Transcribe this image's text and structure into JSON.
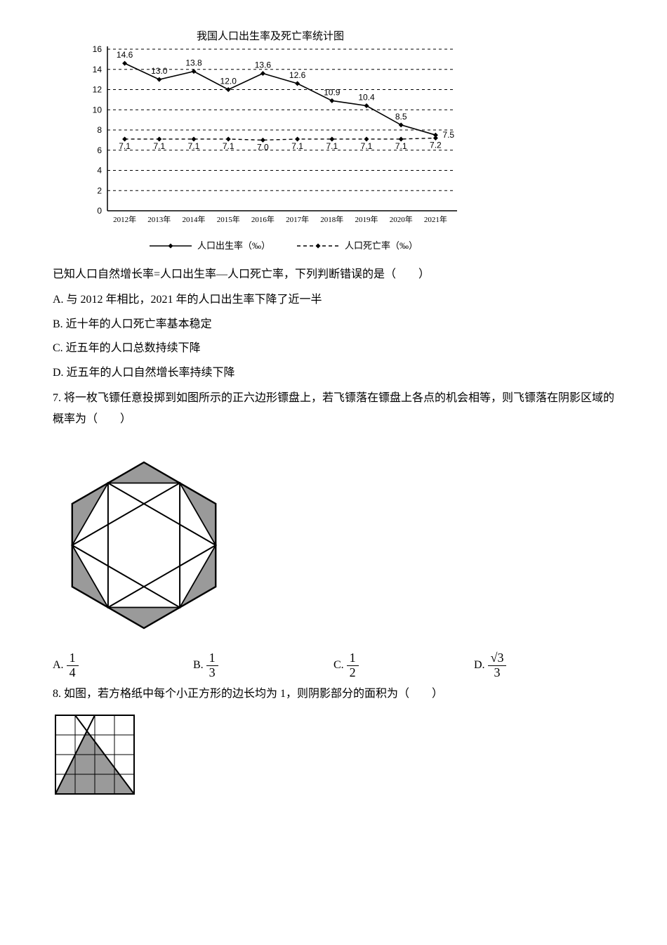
{
  "chart": {
    "type": "line",
    "title": "我国人口出生率及死亡率统计图",
    "title_fontsize": 15,
    "categories": [
      "2012年",
      "2013年",
      "2014年",
      "2015年",
      "2016年",
      "2017年",
      "2018年",
      "2019年",
      "2020年",
      "2021年"
    ],
    "birth_values": [
      14.6,
      13.0,
      13.8,
      12.0,
      13.6,
      12.6,
      10.9,
      10.4,
      8.5,
      7.5
    ],
    "death_values": [
      7.1,
      7.1,
      7.1,
      7.1,
      7.0,
      7.1,
      7.1,
      7.1,
      7.1,
      7.2
    ],
    "ylim": [
      0,
      16
    ],
    "ytick_step": 2,
    "yticks": [
      0,
      2,
      4,
      6,
      8,
      10,
      12,
      14,
      16
    ],
    "series": {
      "birth": {
        "label": "人口出生率（‰）",
        "color": "#000000",
        "style": "solid",
        "marker": "diamond"
      },
      "death": {
        "label": "人口死亡率（‰）",
        "color": "#000000",
        "style": "dashed",
        "marker": "diamond"
      }
    },
    "grid_color": "#000000",
    "background_color": "#ffffff",
    "axis_color": "#000000",
    "label_fontsize": 12,
    "tick_fontsize": 12
  },
  "q6": {
    "intro": "已知人口自然增长率=人口出生率—人口死亡率，下列判断错误的是（　　）",
    "A": "A. 与 2012 年相比，2021 年的人口出生率下降了近一半",
    "B": "B. 近十年的人口死亡率基本稳定",
    "C": "C. 近五年的人口总数持续下降",
    "D": "D. 近五年的人口自然增长率持续下降"
  },
  "q7": {
    "text": "7. 将一枚飞镖任意投掷到如图所示的正六边形镖盘上，若飞镖落在镖盘上各点的机会相等，则飞镖落在阴影区域的概率为（　　）",
    "A": "A.",
    "B": "B.",
    "C": "C.",
    "D": "D.",
    "frac_A": {
      "num": "1",
      "den": "4"
    },
    "frac_B": {
      "num": "1",
      "den": "3"
    },
    "frac_C": {
      "num": "1",
      "den": "2"
    },
    "frac_D": {
      "num": "√3",
      "den": "3"
    },
    "figure": {
      "type": "infographic",
      "shape": "hexagon-with-star",
      "outline_color": "#000000",
      "shade_color": "#9a9a9a",
      "background_color": "#ffffff"
    }
  },
  "q8": {
    "text": "8. 如图，若方格纸中每个小正方形的边长均为 1，则阴影部分的面积为（　　）",
    "figure": {
      "type": "infographic",
      "grid_size": 4,
      "cell_side": 1,
      "outline_color": "#000000",
      "shade_color": "#9a9a9a",
      "background_color": "#ffffff"
    }
  }
}
